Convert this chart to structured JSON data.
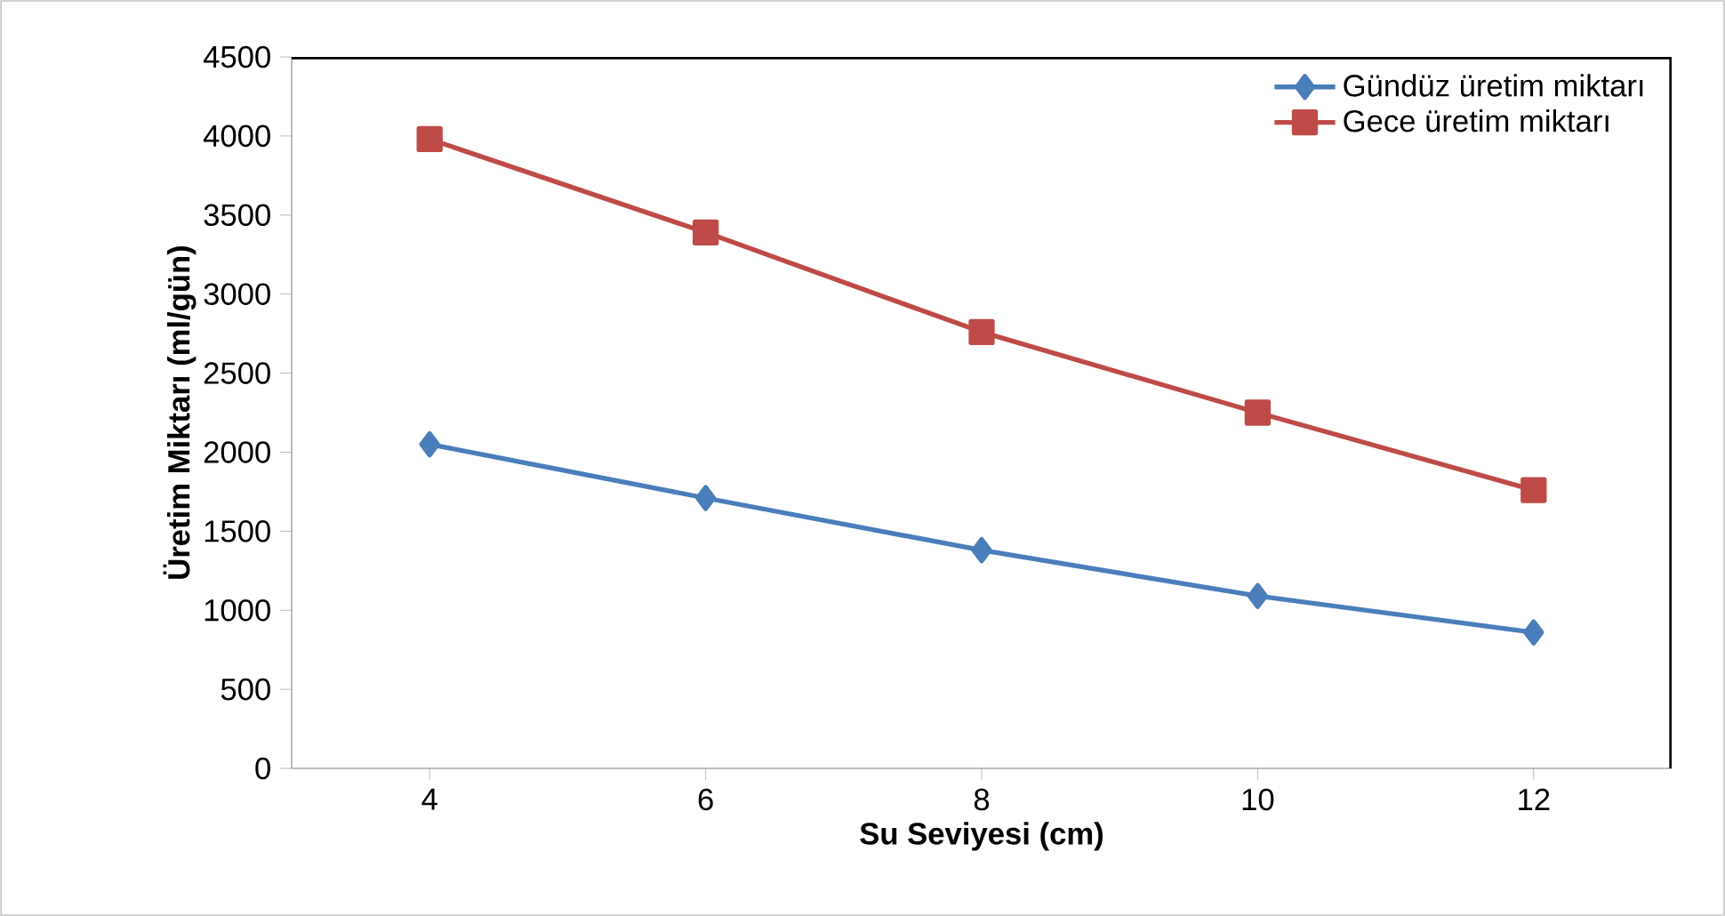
{
  "chart_data": {
    "type": "line",
    "xlabel": "Su Seviyesi (cm)",
    "ylabel": "Üretim Miktarı (ml/gün)",
    "x": [
      4,
      6,
      8,
      10,
      12
    ],
    "series": [
      {
        "name": "Gündüz üretim miktarı",
        "color": "#4a7ebb",
        "marker": "diamond",
        "values": [
          2050,
          1710,
          1380,
          1090,
          860
        ]
      },
      {
        "name": "Gece üretim miktarı",
        "color": "#be4b48",
        "marker": "square",
        "values": [
          3980,
          3390,
          2760,
          2250,
          1760
        ]
      }
    ],
    "xlim": [
      3,
      13
    ],
    "xticks": [
      4,
      6,
      8,
      10,
      12
    ],
    "ylim": [
      0,
      4500
    ],
    "yticks": [
      0,
      500,
      1000,
      1500,
      2000,
      2500,
      3000,
      3500,
      4000,
      4500
    ],
    "legend": "top right",
    "grid": false,
    "line_style": "solid"
  }
}
